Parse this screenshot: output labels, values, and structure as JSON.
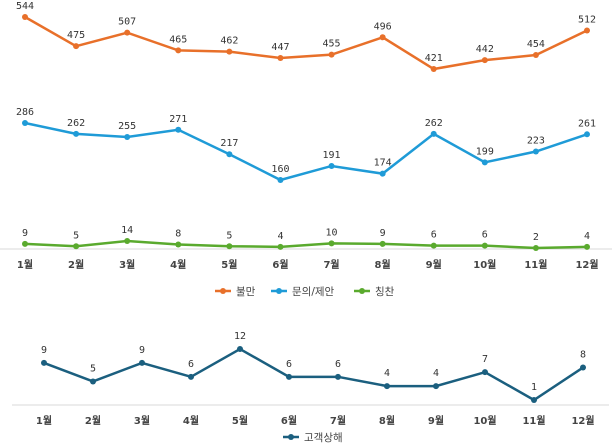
{
  "chart_data": [
    {
      "type": "line",
      "categories": [
        "1월",
        "2월",
        "3월",
        "4월",
        "5월",
        "6월",
        "7월",
        "8월",
        "9월",
        "10월",
        "11월",
        "12월"
      ],
      "series": [
        {
          "name": "불만",
          "color": "#e8702a",
          "values": [
            544,
            475,
            507,
            465,
            462,
            447,
            455,
            496,
            421,
            442,
            454,
            512
          ]
        },
        {
          "name": "문의/제안",
          "color": "#1f9bd7",
          "values": [
            286,
            262,
            255,
            271,
            217,
            160,
            191,
            174,
            262,
            199,
            223,
            261
          ]
        },
        {
          "name": "칭찬",
          "color": "#5aaa2e",
          "values": [
            9,
            5,
            14,
            8,
            5,
            4,
            10,
            9,
            6,
            6,
            2,
            4
          ]
        }
      ],
      "grid": false,
      "legend": "bottom"
    },
    {
      "type": "line",
      "categories": [
        "1월",
        "2월",
        "3월",
        "4월",
        "5월",
        "6월",
        "7월",
        "8월",
        "9월",
        "10월",
        "11월",
        "12월"
      ],
      "series": [
        {
          "name": "고객상해",
          "color": "#1b5f7f",
          "values": [
            9,
            5,
            9,
            6,
            12,
            6,
            6,
            4,
            4,
            7,
            1,
            8
          ]
        }
      ],
      "grid": false,
      "legend": "bottom"
    }
  ]
}
